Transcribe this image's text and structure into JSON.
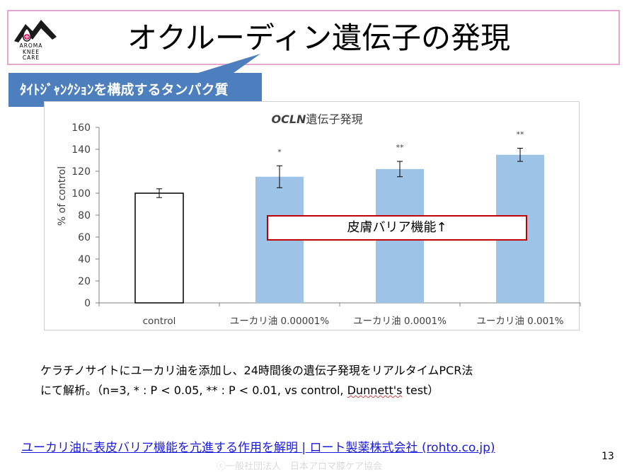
{
  "slide": {
    "title": "オクルーディン遺伝子の発現",
    "callout": "ﾀｲﾄｼﾞｬﾝｸｼｮﾝを構成するタンパク質",
    "logo_text": [
      "AROMA",
      "KNEE",
      "CARE"
    ],
    "annotation_box": "皮膚バリア機能↑",
    "description_line1": "ケラチノサイトにユーカリ油を添加し、24時間後の遺伝子発現をリアルタイムPCR法",
    "description_line2_pre": "にて解析。（n=3, * : P < 0.05, ** : P < 0.01, vs control, ",
    "description_line2_sq": "Dunnett's",
    "description_line2_post": " test）",
    "link_text": "ユーカリ油に表皮バリア機能を亢進する作用を解明 | ロート製薬株式会社 (rohto.co.jp)",
    "page_number": "13",
    "watermark": "ⓒ一般社団法人　日本アロマ膝ケア協会"
  },
  "colors": {
    "bar_control": "#ffffff",
    "bar_treated": "#9dc3e6",
    "title_border": "#e6a6cf",
    "callout_bg": "#4d7fbf",
    "annotation_border": "#c00000",
    "link": "#1a1add"
  },
  "chart_data": {
    "type": "bar",
    "title_italic": "OCLN",
    "title_rest": "遺伝子発現",
    "ylabel": "% of control",
    "xlabel": "",
    "ylim": [
      0,
      160
    ],
    "yticks": [
      0,
      20,
      40,
      60,
      80,
      100,
      120,
      140,
      160
    ],
    "grid": false,
    "categories": [
      "control",
      "ユーカリ油 0.00001%",
      "ユーカリ油 0.0001%",
      "ユーカリ油 0.001%"
    ],
    "values": [
      100,
      115,
      122,
      135
    ],
    "errors": [
      4,
      10,
      7,
      6
    ],
    "significance": [
      "",
      "*",
      "**",
      "**"
    ]
  }
}
